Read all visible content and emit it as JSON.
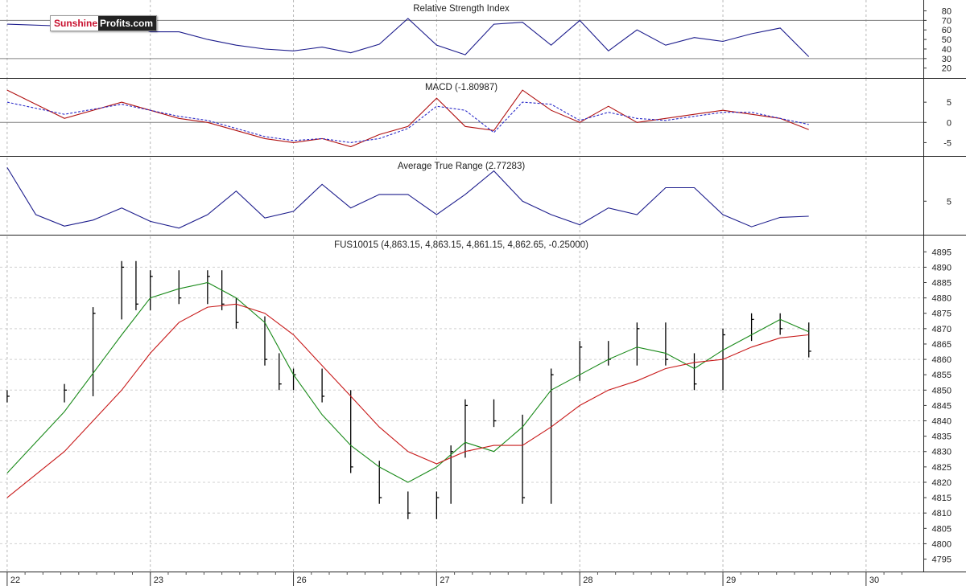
{
  "chart_data": [
    {
      "type": "line",
      "panel": "rsi",
      "title": "Relative Strength Index",
      "yticks": [
        20,
        30,
        40,
        50,
        60,
        70,
        80
      ],
      "ylim": [
        13,
        88
      ],
      "reference_lines": [
        30,
        70
      ],
      "series": [
        {
          "color": "#1c1c8c",
          "x": [
            0,
            0.4,
            0.8,
            1.0,
            1.2,
            1.4,
            1.6,
            1.8,
            2.0,
            2.2,
            2.4,
            2.6,
            2.8,
            3.0,
            3.2,
            3.4,
            3.6,
            3.8,
            4.0,
            4.2,
            4.4,
            4.6,
            4.8,
            5.0,
            5.2,
            5.4,
            5.6
          ],
          "values": [
            66,
            64,
            70,
            58,
            58,
            50,
            44,
            40,
            38,
            42,
            36,
            45,
            72,
            44,
            34,
            66,
            68,
            44,
            70,
            38,
            60,
            44,
            52,
            48,
            56,
            62,
            32
          ]
        }
      ]
    },
    {
      "type": "line",
      "panel": "macd",
      "title": "MACD (-1.80987)",
      "yticks": [
        -5,
        0,
        5
      ],
      "ylim": [
        -7.5,
        10
      ],
      "reference_lines": [
        0
      ],
      "series": [
        {
          "color": "#b01010",
          "x": [
            0,
            0.4,
            0.8,
            1.0,
            1.2,
            1.4,
            1.6,
            1.8,
            2.0,
            2.2,
            2.4,
            2.6,
            2.8,
            3.0,
            3.2,
            3.4,
            3.6,
            3.8,
            4.0,
            4.2,
            4.4,
            4.6,
            4.8,
            5.0,
            5.2,
            5.4,
            5.6
          ],
          "values": [
            8,
            1,
            5,
            3,
            1,
            0,
            -2,
            -4,
            -5,
            -4,
            -6,
            -3,
            -1,
            6,
            -1,
            -2,
            8,
            3,
            0,
            4,
            0,
            1,
            2,
            3,
            2,
            1,
            -1.8
          ]
        },
        {
          "color": "#2a2ac8",
          "dashed": true,
          "x": [
            0,
            0.4,
            0.8,
            1.0,
            1.2,
            1.4,
            1.6,
            1.8,
            2.0,
            2.2,
            2.4,
            2.6,
            2.8,
            3.0,
            3.2,
            3.4,
            3.6,
            3.8,
            4.0,
            4.2,
            4.4,
            4.6,
            4.8,
            5.0,
            5.2,
            5.4,
            5.6
          ],
          "values": [
            5,
            2,
            4.5,
            3,
            1.5,
            0.5,
            -1.5,
            -3.5,
            -4.5,
            -4,
            -5,
            -4,
            -1.5,
            4,
            3,
            -2.5,
            5,
            4.5,
            0.5,
            2.5,
            1,
            0.5,
            1.5,
            2.5,
            2.5,
            1,
            -0.5
          ]
        }
      ]
    },
    {
      "type": "line",
      "panel": "atr",
      "title": "Average True Range (2.77283)",
      "yticks": [
        5
      ],
      "ylim": [
        0.5,
        11
      ],
      "series": [
        {
          "color": "#1c1c8c",
          "x": [
            0,
            0.2,
            0.4,
            0.6,
            0.8,
            1.0,
            1.2,
            1.4,
            1.6,
            1.8,
            2.0,
            2.2,
            2.4,
            2.6,
            2.8,
            3.0,
            3.2,
            3.4,
            3.6,
            3.8,
            4.0,
            4.2,
            4.4,
            4.6,
            4.8,
            5.0,
            5.2,
            5.4,
            5.6
          ],
          "values": [
            10,
            3,
            1.3,
            2.2,
            4,
            2,
            1,
            3,
            6.5,
            2.5,
            3.5,
            7.5,
            4,
            6,
            6,
            3,
            6,
            9.5,
            5,
            3,
            1.5,
            4,
            3,
            7,
            7,
            3,
            1.2,
            2.6,
            2.77
          ]
        }
      ]
    },
    {
      "type": "line",
      "panel": "price",
      "title": "FUS10015 (4,863.15, 4,863.15, 4,861.15, 4,862.65, -0.25000)",
      "yticks": [
        4795,
        4800,
        4805,
        4810,
        4815,
        4820,
        4825,
        4830,
        4835,
        4840,
        4845,
        4850,
        4855,
        4860,
        4865,
        4870,
        4875,
        4880,
        4885,
        4890,
        4895
      ],
      "ylim": [
        4792,
        4899
      ],
      "xticks": [
        {
          "x": 0,
          "label": "22"
        },
        {
          "x": 1,
          "label": "23"
        },
        {
          "x": 2,
          "label": "26"
        },
        {
          "x": 3,
          "label": "27"
        },
        {
          "x": 4,
          "label": "28"
        },
        {
          "x": 5,
          "label": "29"
        },
        {
          "x": 6,
          "label": "30"
        }
      ],
      "xlim": [
        -0.05,
        6.4
      ],
      "series": [
        {
          "style": "bars",
          "color": "#000000",
          "x": [
            0.0,
            0.4,
            0.6,
            0.8,
            0.9,
            1.0,
            1.2,
            1.4,
            1.5,
            1.6,
            1.8,
            1.9,
            2.0,
            2.2,
            2.4,
            2.6,
            2.8,
            3.0,
            3.1,
            3.2,
            3.4,
            3.6,
            3.8,
            4.0,
            4.2,
            4.4,
            4.6,
            4.8,
            5.0,
            5.2,
            5.4,
            5.6
          ],
          "values": [
            4848,
            4850,
            4875,
            4890,
            4878,
            4887,
            4880,
            4887,
            4878,
            4872,
            4860,
            4852,
            4855,
            4848,
            4825,
            4815,
            4810,
            4815,
            4830,
            4845,
            4840,
            4815,
            4855,
            4864,
            4860,
            4870,
            4860,
            4852,
            4868,
            4873,
            4870,
            4862.65
          ]
        },
        {
          "color": "#1a8a1a",
          "x": [
            0,
            0.4,
            0.8,
            1.0,
            1.2,
            1.4,
            1.6,
            1.8,
            2.0,
            2.2,
            2.4,
            2.6,
            2.8,
            3.0,
            3.2,
            3.4,
            3.6,
            3.8,
            4.0,
            4.2,
            4.4,
            4.6,
            4.8,
            5.0,
            5.2,
            5.4,
            5.6
          ],
          "values": [
            4823,
            4843,
            4868,
            4880,
            4883,
            4885,
            4880,
            4872,
            4855,
            4842,
            4832,
            4825,
            4820,
            4825,
            4833,
            4830,
            4838,
            4850,
            4855,
            4860,
            4864,
            4862,
            4857,
            4863,
            4868,
            4873,
            4869
          ]
        },
        {
          "color": "#c81a1a",
          "x": [
            0,
            0.4,
            0.8,
            1.0,
            1.2,
            1.4,
            1.6,
            1.8,
            2.0,
            2.2,
            2.4,
            2.6,
            2.8,
            3.0,
            3.2,
            3.4,
            3.6,
            3.8,
            4.0,
            4.2,
            4.4,
            4.6,
            4.8,
            5.0,
            5.2,
            5.4,
            5.6
          ],
          "values": [
            4815,
            4830,
            4850,
            4862,
            4872,
            4877,
            4878,
            4875,
            4868,
            4858,
            4848,
            4838,
            4830,
            4826,
            4830,
            4832,
            4832,
            4838,
            4845,
            4850,
            4853,
            4857,
            4859,
            4860,
            4864,
            4867,
            4868
          ]
        }
      ]
    }
  ],
  "logo": {
    "word1": "Sunshine",
    "word2": "Profits.com"
  }
}
